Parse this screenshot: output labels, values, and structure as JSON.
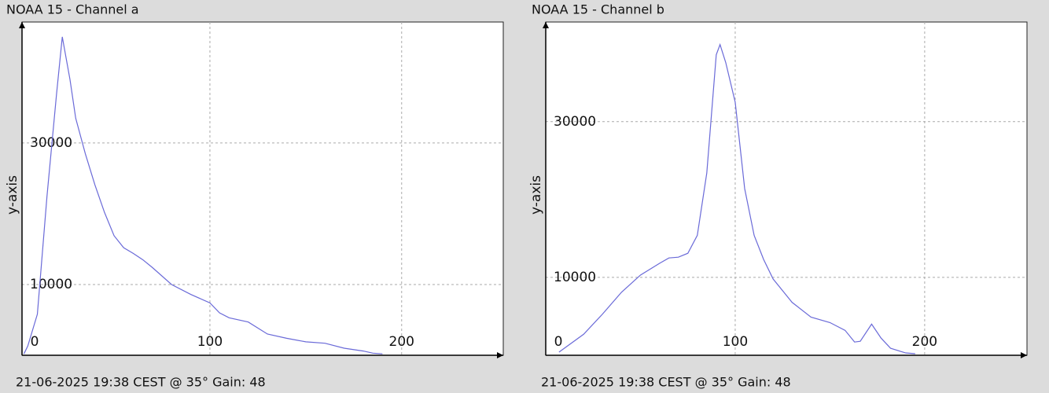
{
  "chart_data": [
    {
      "type": "line",
      "title": "NOAA 15 - Channel a",
      "ylabel": "y-axis",
      "footer": "21-06-2025 19:38 CEST @ 35° Gain: 48",
      "x": [
        3,
        5,
        10,
        15,
        20,
        23,
        27,
        30,
        35,
        40,
        45,
        50,
        55,
        60,
        65,
        70,
        80,
        90,
        100,
        105,
        110,
        120,
        130,
        140,
        150,
        160,
        170,
        180,
        185,
        190
      ],
      "series": [
        {
          "name": "Channel a",
          "color": "#6a6ad8",
          "values": [
            200,
            1300,
            5800,
            22400,
            36900,
            45000,
            39000,
            33500,
            28500,
            24100,
            20200,
            16900,
            15200,
            14400,
            13500,
            12400,
            10000,
            8600,
            7400,
            6000,
            5300,
            4700,
            3000,
            2400,
            1900,
            1700,
            1000,
            600,
            300,
            200
          ]
        }
      ],
      "xlim": [
        2,
        253
      ],
      "xticks": [
        0,
        100,
        200
      ],
      "ylim": [
        0,
        47100
      ],
      "yticks": [
        10000,
        30000
      ],
      "grid": true
    },
    {
      "type": "line",
      "title": "NOAA 15 - Channel b",
      "ylabel": "y-axis",
      "footer": "21-06-2025 19:38 CEST @ 35° Gain: 48",
      "x": [
        7,
        20,
        30,
        40,
        50,
        60,
        65,
        70,
        75,
        80,
        85,
        90,
        92,
        95,
        100,
        105,
        110,
        115,
        120,
        130,
        140,
        150,
        158,
        163,
        166,
        172,
        177,
        182,
        190,
        195
      ],
      "series": [
        {
          "name": "Channel b",
          "color": "#6a6ad8",
          "values": [
            400,
            2700,
            5300,
            8100,
            10300,
            11800,
            12500,
            12600,
            13100,
            15400,
            23400,
            38600,
            39900,
            37600,
            32500,
            21400,
            15400,
            12300,
            9800,
            6800,
            4900,
            4200,
            3200,
            1700,
            1800,
            4000,
            2200,
            900,
            300,
            200
          ]
        }
      ],
      "xlim": [
        0,
        254
      ],
      "xticks": [
        0,
        100,
        200
      ],
      "ylim": [
        0,
        42800
      ],
      "yticks": [
        10000,
        30000
      ],
      "grid": true
    }
  ]
}
